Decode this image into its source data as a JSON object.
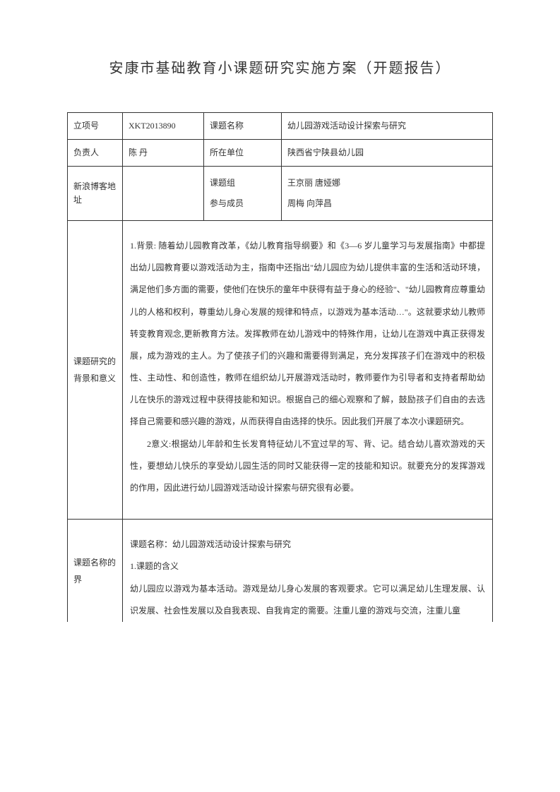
{
  "title": "安康市基础教育小课题研究实施方案（开题报告）",
  "row1": {
    "label1": "立项号",
    "value1": "XKT2013890",
    "label2": "课题名称",
    "value2": "幼儿园游戏活动设计探索与研究"
  },
  "row2": {
    "label1": "负责人",
    "value1": "陈 丹",
    "label2": "所在单位",
    "value2": "陕西省宁陕县幼儿园"
  },
  "row3": {
    "label1": "新浪博客地址",
    "value1": "",
    "label2_line1": "课题组",
    "label2_line2": "参与成员",
    "value2_line1": "王京丽  唐娅娜",
    "value2_line2": " 周梅  向萍昌"
  },
  "section1": {
    "label": "课题研究的背景和意义",
    "para1": "1.背景: 随着幼儿园教育改革，《幼儿教育指导纲要》和《3—6 岁儿童学习与发展指南》中都提出幼儿园教育要以游戏活动为主，指南中还指出\"幼儿园应为幼儿提供丰富的生活和活动环境，满足他们多方面的需要，使他们在快乐的童年中获得有益于身心的经验\"、\"幼儿园教育应尊重幼儿的人格和权利，尊重幼儿身心发展的规律和特点，以游戏为基本活动…\"。这就要求幼儿教师转变教育观念,更新教育方法。发挥教师在幼儿游戏中的特殊作用，让幼儿在游戏中真正获得发展，成为游戏的主人。为了使孩子们的兴趣和需要得到满足，充分发挥孩子们在游戏中的积极性、主动性、和创造性，教师在组织幼儿开展游戏活动时，教师要作为引导者和支持者帮助幼儿在快乐的游戏过程中获得技能和知识。根据自己的细心观察和了解，鼓励孩子们自由的去选择自己需要和感兴趣的游戏，从而获得自由选择的快乐。因此我们开展了本次小课题研究。",
    "para2": "2意义:根据幼儿年龄和生长发育特征幼儿不宜过早的写、背、记。结合幼儿喜欢游戏的天性，要想幼儿快乐的享受幼儿园生活的同时又能获得一定的技能和知识。就要充分的发挥游戏的作用，因此进行幼儿园游戏活动设计探索与研究很有必要。"
  },
  "section2": {
    "label": "课题名称的界",
    "para1": "课题名称：幼儿园游戏活动设计探索与研究",
    "para2": "1.课题的含义",
    "para3": "幼儿园应以游戏为基本活动。游戏是幼儿身心发展的客观要求。它可以满足幼儿生理发展、认识发展、社会性发展以及自我表现、自我肯定的需要。注重儿童的游戏与交流，注重儿童"
  }
}
